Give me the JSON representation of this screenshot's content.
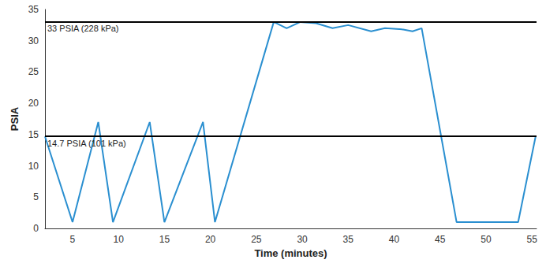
{
  "chart_data": {
    "type": "line",
    "x_label": "Time (minutes)",
    "y_label": "PSIA",
    "x": [
      2,
      5,
      7.8,
      9.4,
      13.4,
      15,
      19.2,
      20.5,
      26.9,
      28.3,
      29.8,
      31.5,
      33.3,
      35,
      37.5,
      39,
      41,
      42,
      43,
      46.8,
      53.5,
      55.4
    ],
    "values": [
      14.7,
      1,
      17,
      1,
      17,
      1,
      17,
      1,
      33,
      32,
      33,
      32.8,
      32,
      32.5,
      31.5,
      32,
      31.8,
      31.5,
      32,
      1,
      1,
      14.7
    ],
    "color": "#2a8fd0",
    "marker": "none",
    "line_style": "solid",
    "xlim": [
      2,
      55.5
    ],
    "xticks": [
      5,
      10,
      15,
      20,
      25,
      30,
      35,
      40,
      45,
      50,
      55
    ],
    "ylim": [
      0,
      35
    ],
    "yticks": [
      0,
      5,
      10,
      15,
      20,
      25,
      30,
      35
    ],
    "grid": false,
    "annotations": [
      {
        "y": 33,
        "text": "33 PSIA (228 kPa)"
      },
      {
        "y": 14.7,
        "text": "14.7 PSIA (101 kPa)"
      }
    ]
  }
}
